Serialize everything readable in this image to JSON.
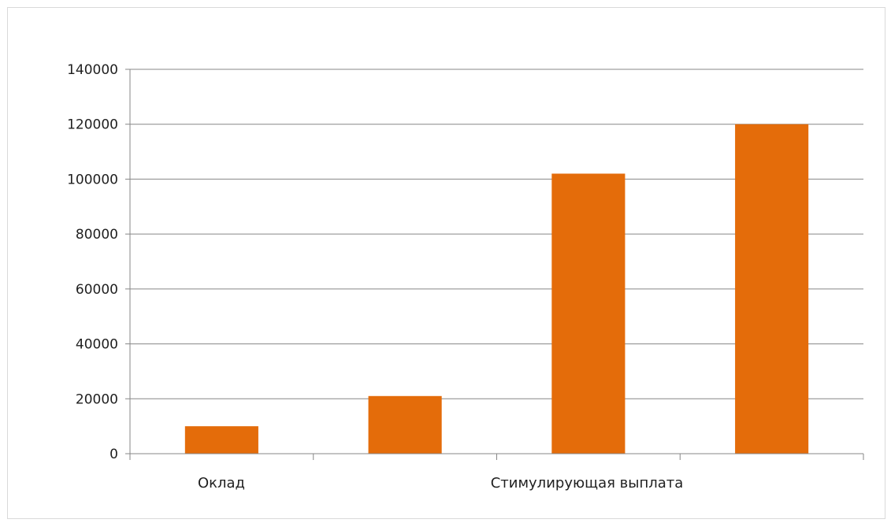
{
  "chart_data": {
    "type": "bar",
    "title": "",
    "xlabel": "",
    "ylabel": "",
    "ylim": [
      0,
      140000
    ],
    "yticks": [
      0,
      20000,
      40000,
      60000,
      80000,
      100000,
      120000,
      140000
    ],
    "yticks_labels": [
      "0",
      "20000",
      "40000",
      "60000",
      "80000",
      "100000",
      "120000",
      "140000"
    ],
    "category_labels": [
      "Оклад",
      "Стимулирующая выплата"
    ],
    "values": [
      10000,
      21000,
      102000,
      120000
    ],
    "grid": "horizontal",
    "legend": "none",
    "colors": {
      "bar": "#e46c0a",
      "grid": "#878787",
      "axis": "#878787"
    }
  }
}
